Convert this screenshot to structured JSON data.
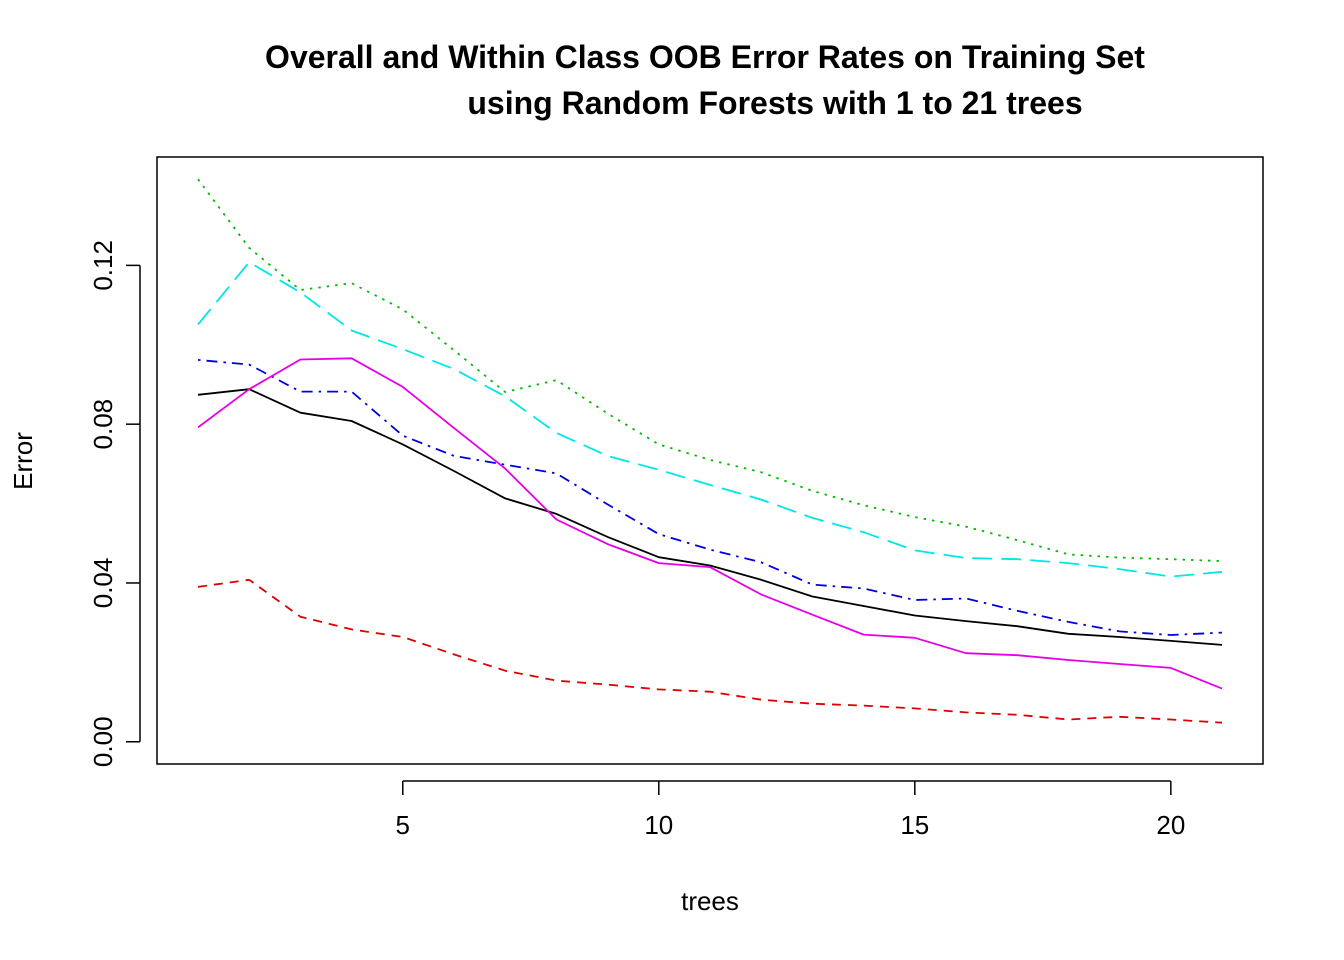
{
  "chart_data": {
    "type": "line",
    "title": "Overall and Within Class OOB Error Rates on Training Set",
    "subtitle": "using Random Forests with 1 to 21 trees",
    "xlabel": "trees",
    "ylabel": "Error",
    "xlim": [
      0.2,
      21.8
    ],
    "ylim": [
      -0.0056,
      0.1473
    ],
    "xticks": [
      5,
      10,
      15,
      20
    ],
    "yticks": [
      0.0,
      0.04,
      0.08,
      0.12
    ],
    "ytick_labels": [
      "0.00",
      "0.04",
      "0.08",
      "0.12"
    ],
    "legend": "none",
    "grid": false,
    "x": [
      1,
      2,
      3,
      4,
      5,
      6,
      7,
      8,
      9,
      10,
      11,
      12,
      13,
      14,
      15,
      16,
      17,
      18,
      19,
      20,
      21
    ],
    "series": [
      {
        "color": "#000000",
        "dash": "solid",
        "values": [
          0.0874,
          0.0888,
          0.0829,
          0.0808,
          0.0749,
          0.0682,
          0.0613,
          0.0574,
          0.0516,
          0.0465,
          0.0444,
          0.0408,
          0.0366,
          0.0342,
          0.0318,
          0.0304,
          0.0291,
          0.0272,
          0.0264,
          0.0254,
          0.0244
        ]
      },
      {
        "color": "#dd0000",
        "dash": "dashed",
        "values": [
          0.039,
          0.0408,
          0.0315,
          0.0283,
          0.0264,
          0.022,
          0.0179,
          0.0154,
          0.0144,
          0.0132,
          0.0126,
          0.0106,
          0.0096,
          0.0091,
          0.0084,
          0.0074,
          0.0068,
          0.0056,
          0.0063,
          0.0056,
          0.0048
        ]
      },
      {
        "color": "#00bb00",
        "dash": "dotted",
        "values": [
          0.1417,
          0.1244,
          0.1138,
          0.1155,
          0.1089,
          0.0986,
          0.0881,
          0.0911,
          0.0827,
          0.0749,
          0.071,
          0.0679,
          0.0632,
          0.0596,
          0.0566,
          0.0542,
          0.0508,
          0.0472,
          0.0464,
          0.046,
          0.0455
        ]
      },
      {
        "color": "#0000dd",
        "dash": "dotdash",
        "values": [
          0.0962,
          0.095,
          0.0882,
          0.0882,
          0.0771,
          0.072,
          0.0698,
          0.0676,
          0.0598,
          0.0523,
          0.0484,
          0.0452,
          0.0396,
          0.0386,
          0.0357,
          0.0361,
          0.033,
          0.0302,
          0.0278,
          0.0269,
          0.0275
        ]
      },
      {
        "color": "#00e6e6",
        "dash": "longdash",
        "values": [
          0.1051,
          0.1208,
          0.1132,
          0.1036,
          0.0989,
          0.0939,
          0.087,
          0.0778,
          0.072,
          0.0685,
          0.0647,
          0.061,
          0.0564,
          0.0528,
          0.0482,
          0.0463,
          0.046,
          0.045,
          0.0435,
          0.0416,
          0.0428
        ]
      },
      {
        "color": "#e600e6",
        "dash": "solid",
        "values": [
          0.0792,
          0.0888,
          0.0963,
          0.0966,
          0.0894,
          0.079,
          0.0688,
          0.056,
          0.0498,
          0.045,
          0.044,
          0.0371,
          0.032,
          0.027,
          0.0262,
          0.0223,
          0.0218,
          0.0206,
          0.0196,
          0.0186,
          0.0134
        ]
      }
    ]
  }
}
